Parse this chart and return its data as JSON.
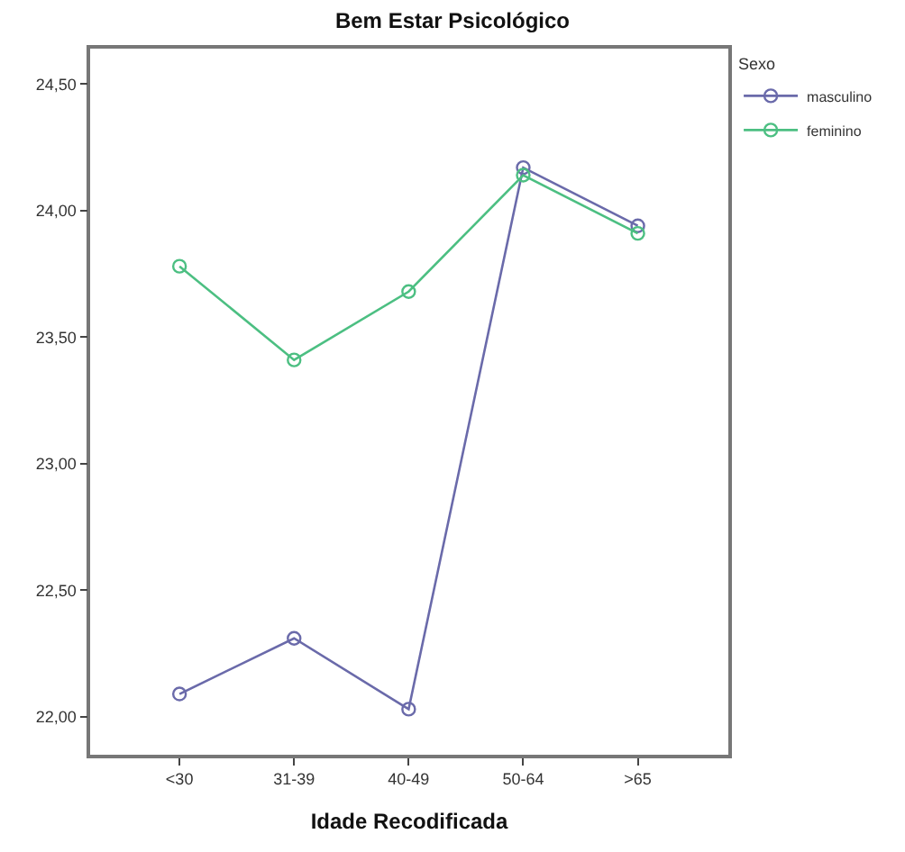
{
  "chart_data": {
    "type": "line",
    "title": "Bem Estar Psicológico",
    "xlabel": "Idade Recodificada",
    "legend_title": "Sexo",
    "categories": [
      "<30",
      "31-39",
      "40-49",
      "50-64",
      ">65"
    ],
    "series": [
      {
        "name": "masculino",
        "color": "#6a6aaa",
        "values": [
          22.09,
          22.31,
          22.03,
          24.17,
          23.94
        ]
      },
      {
        "name": "feminino",
        "color": "#4cbf82",
        "values": [
          23.78,
          23.41,
          23.68,
          24.14,
          23.91
        ]
      }
    ],
    "ylim": [
      21.85,
      24.64
    ],
    "yticks": [
      {
        "value": 22,
        "label": "22,00"
      },
      {
        "value": 22.5,
        "label": "22,50"
      },
      {
        "value": 23,
        "label": "23,00"
      },
      {
        "value": 23.5,
        "label": "23,50"
      },
      {
        "value": 24,
        "label": "24,00"
      },
      {
        "value": 24.5,
        "label": "24,50"
      }
    ],
    "legend": "top right",
    "marker": "circle",
    "line_style": "solid"
  }
}
